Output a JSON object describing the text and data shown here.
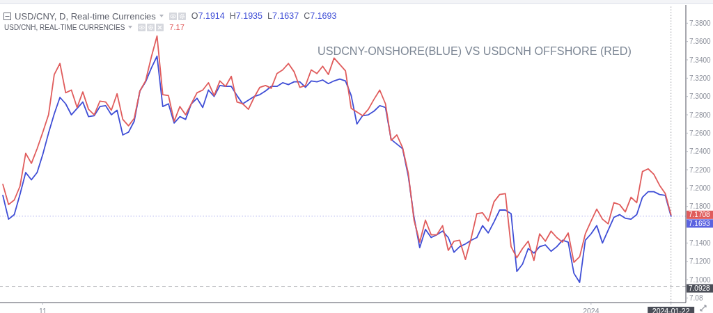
{
  "chart_data": {
    "type": "line",
    "title": "USD/CNY, D, Real-time Currencies",
    "subtitle": "USD/CNH, REAL-TIME CURRENCIES",
    "categories": [
      null,
      null,
      null,
      null,
      null,
      null,
      null,
      "11",
      null,
      null,
      null,
      null,
      null,
      null,
      null,
      null,
      null,
      null,
      null,
      null,
      null,
      null,
      null,
      null,
      null,
      null,
      null,
      null,
      null,
      null,
      null,
      null,
      null,
      null,
      null,
      null,
      null,
      null,
      null,
      null,
      null,
      null,
      null,
      null,
      null,
      null,
      null,
      null,
      null,
      null,
      null,
      null,
      null,
      null,
      null,
      null,
      null,
      null,
      null,
      null,
      null,
      null,
      null,
      null,
      null,
      null,
      null,
      null,
      null,
      null,
      null,
      null,
      null,
      null,
      null,
      null,
      null,
      null,
      null,
      null,
      null,
      null,
      null,
      null,
      null,
      null,
      null,
      null,
      null,
      null,
      null,
      null,
      null,
      null,
      null,
      null,
      null,
      null,
      null,
      null,
      null,
      null,
      null,
      "2024",
      null,
      null,
      null,
      null,
      null,
      null,
      null,
      null,
      null,
      null,
      null,
      null,
      null,
      "2024-01-22"
    ],
    "series": [
      {
        "color": "#3f4ed6",
        "values": [
          7.192,
          7.166,
          7.171,
          7.193,
          7.217,
          7.209,
          7.217,
          7.237,
          7.26,
          7.281,
          7.299,
          7.292,
          7.28,
          7.287,
          7.294,
          7.278,
          7.279,
          7.289,
          7.29,
          7.28,
          7.285,
          7.258,
          7.261,
          7.273,
          7.306,
          7.316,
          7.331,
          7.344,
          7.289,
          7.292,
          7.271,
          7.278,
          7.275,
          7.292,
          7.298,
          7.288,
          7.307,
          7.3,
          7.312,
          7.311,
          7.311,
          7.301,
          7.292,
          7.296,
          7.3,
          7.302,
          7.306,
          7.311,
          7.311,
          7.315,
          7.313,
          7.316,
          7.316,
          7.31,
          7.317,
          7.316,
          7.318,
          7.314,
          7.317,
          7.319,
          7.317,
          7.301,
          7.27,
          7.279,
          7.28,
          7.284,
          7.29,
          7.288,
          7.253,
          7.248,
          7.243,
          7.213,
          7.168,
          7.135,
          7.155,
          7.146,
          7.149,
          7.153,
          7.146,
          7.13,
          7.136,
          7.139,
          7.143,
          7.146,
          7.159,
          7.151,
          7.163,
          7.176,
          7.176,
          7.172,
          7.109,
          7.117,
          7.134,
          7.129,
          7.136,
          7.138,
          7.131,
          7.136,
          7.143,
          7.141,
          7.107,
          7.097,
          7.143,
          7.15,
          7.159,
          7.14,
          7.154,
          7.168,
          7.171,
          7.167,
          7.166,
          7.171,
          7.19,
          7.196,
          7.196,
          7.193,
          7.192,
          7.1693
        ]
      },
      {
        "color": "#e05c5c",
        "values": [
          7.204,
          7.182,
          7.187,
          7.202,
          7.238,
          7.227,
          7.243,
          7.261,
          7.28,
          7.324,
          7.336,
          7.304,
          7.307,
          7.288,
          7.305,
          7.286,
          7.28,
          7.295,
          7.294,
          7.285,
          7.303,
          7.275,
          7.268,
          7.276,
          7.306,
          7.317,
          7.343,
          7.366,
          7.302,
          7.301,
          7.273,
          7.289,
          7.28,
          7.292,
          7.304,
          7.307,
          7.315,
          7.301,
          7.317,
          7.311,
          7.322,
          7.294,
          7.292,
          7.286,
          7.299,
          7.31,
          7.312,
          7.309,
          7.325,
          7.329,
          7.336,
          7.327,
          7.31,
          7.312,
          7.329,
          7.325,
          7.333,
          7.324,
          7.342,
          7.335,
          7.328,
          7.287,
          7.283,
          7.279,
          7.286,
          7.297,
          7.307,
          7.292,
          7.252,
          7.258,
          7.244,
          7.216,
          7.165,
          7.141,
          7.165,
          7.149,
          7.149,
          7.159,
          7.132,
          7.142,
          7.143,
          7.122,
          7.145,
          7.172,
          7.173,
          7.164,
          7.185,
          7.193,
          7.194,
          7.136,
          7.124,
          7.134,
          7.142,
          7.121,
          7.15,
          7.142,
          7.153,
          7.146,
          7.141,
          7.151,
          7.119,
          7.125,
          7.15,
          7.164,
          7.177,
          7.166,
          7.161,
          7.184,
          7.182,
          7.174,
          7.19,
          7.184,
          7.218,
          7.221,
          7.215,
          7.203,
          7.194,
          7.1708
        ]
      }
    ],
    "ylim": [
      7.075,
      7.4
    ],
    "yticks": [
      {
        "value": 7.08,
        "label": "7.08"
      },
      {
        "value": 7.1,
        "label": "7.1000"
      },
      {
        "value": 7.12,
        "label": "7.1200"
      },
      {
        "value": 7.14,
        "label": "7.1400"
      },
      {
        "value": 7.18,
        "label": "7.1800"
      },
      {
        "value": 7.2,
        "label": "7.2000"
      },
      {
        "value": 7.22,
        "label": "7.2200"
      },
      {
        "value": 7.24,
        "label": "7.2400"
      },
      {
        "value": 7.26,
        "label": "7.2600"
      },
      {
        "value": 7.28,
        "label": "7.2800"
      },
      {
        "value": 7.3,
        "label": "7.3000"
      },
      {
        "value": 7.32,
        "label": "7.3200"
      },
      {
        "value": 7.34,
        "label": "7.3400"
      },
      {
        "value": 7.36,
        "label": "7.3600"
      },
      {
        "value": 7.38,
        "label": "7.3800"
      }
    ],
    "marker": "none",
    "line_style": "solid",
    "ref_lines": [
      {
        "axis": "y",
        "value": 7.1693,
        "label": "7.1693",
        "color": "#5b63e0",
        "line_style": "dotted"
      },
      {
        "axis": "y",
        "value": 7.0928,
        "label": "7.0928",
        "color": "#4a4d57",
        "line_style": "dashed"
      },
      {
        "axis": "x",
        "value": "2024-01-22",
        "color": "#4a4d57",
        "line_style": "dotted"
      }
    ],
    "annotations": [
      "O7.1914",
      "H7.1935",
      "L7.1637",
      "C7.1693",
      "7.17",
      "USDCNY-ONSHORE(BLUE) VS USDCNH OFFSHORE (RED)",
      "7.1708"
    ]
  }
}
